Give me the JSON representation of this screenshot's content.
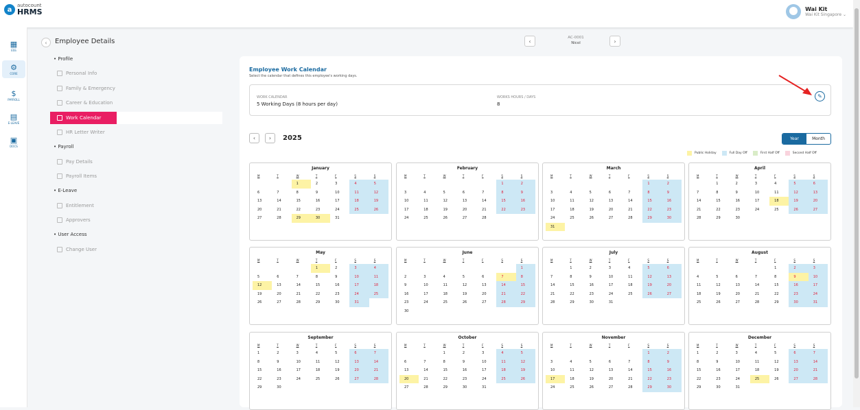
{
  "app": {
    "brand_top": "autocount",
    "brand_main": "HRMS",
    "user_name": "Wai Kit",
    "user_company": "Wai Kit Singapore"
  },
  "nav": [
    {
      "id": "ess",
      "label": "ESS",
      "icon": "ess-icon"
    },
    {
      "id": "core",
      "label": "CORE",
      "icon": "core-icon"
    },
    {
      "id": "payroll",
      "label": "PAYROLL",
      "icon": "payroll-icon"
    },
    {
      "id": "eleave",
      "label": "E-LEAVE",
      "icon": "calendar-icon"
    },
    {
      "id": "docs",
      "label": "DOCS",
      "icon": "docs-icon"
    }
  ],
  "page_title": "Employee Details",
  "menu": {
    "profile": "Profile",
    "personal_info": "Personal Info",
    "family": "Family & Emergency",
    "career": "Career & Education",
    "work_calendar": "Work Calendar",
    "hr_letter": "HR Letter Writer",
    "payroll": "Payroll",
    "pay_details": "Pay Details",
    "payroll_items": "Payroll Items",
    "eleave": "E-Leave",
    "entitlement": "Entitlement",
    "approvers": "Approvers",
    "user_access": "User Access",
    "change_user": "Change User"
  },
  "employee": {
    "id": "AC-0001",
    "name": "Nicol"
  },
  "section": {
    "title": "Employee Work Calendar",
    "subtitle": "Select the calendar that defines this employee's working days."
  },
  "work_calendar": {
    "label": "WORK CALENDAR",
    "value": "5 Working Days (8 hours per day)",
    "hours_label": "WORKS HOURS / DAYS",
    "hours_value": "8"
  },
  "year": "2025",
  "view": {
    "year": "Year",
    "month": "Month"
  },
  "legend": {
    "public_holiday": "Public Holiday",
    "full_day_off": "Full Day Off",
    "first_half_off": "First Half Off",
    "second_half_off": "Second Half Off"
  },
  "colors": {
    "public_holiday": "#fdf3a5",
    "full_day_off": "#cde8f5",
    "first_half_off": "#d9ecc7",
    "second_half_off": "#f9d3dd",
    "accent": "#1a6aa0",
    "active_menu": "#e91e63"
  },
  "weekdays": [
    "M",
    "T",
    "W",
    "T",
    "F",
    "S",
    "S"
  ],
  "months": [
    {
      "name": "January",
      "offset": 2,
      "days": 31,
      "holidays": [
        1,
        29,
        30
      ]
    },
    {
      "name": "February",
      "offset": 5,
      "days": 28,
      "holidays": []
    },
    {
      "name": "March",
      "offset": 5,
      "days": 31,
      "holidays": [
        31
      ]
    },
    {
      "name": "April",
      "offset": 1,
      "days": 30,
      "holidays": [
        18
      ]
    },
    {
      "name": "May",
      "offset": 3,
      "days": 31,
      "holidays": [
        1,
        12
      ]
    },
    {
      "name": "June",
      "offset": 6,
      "days": 30,
      "holidays": [
        7
      ]
    },
    {
      "name": "July",
      "offset": 1,
      "days": 31,
      "holidays": []
    },
    {
      "name": "August",
      "offset": 4,
      "days": 31,
      "holidays": [
        9
      ]
    },
    {
      "name": "September",
      "offset": 0,
      "days": 30,
      "holidays": []
    },
    {
      "name": "October",
      "offset": 2,
      "days": 31,
      "holidays": [
        20
      ]
    },
    {
      "name": "November",
      "offset": 5,
      "days": 30,
      "holidays": [
        17
      ]
    },
    {
      "name": "December",
      "offset": 0,
      "days": 31,
      "holidays": [
        25
      ]
    }
  ]
}
